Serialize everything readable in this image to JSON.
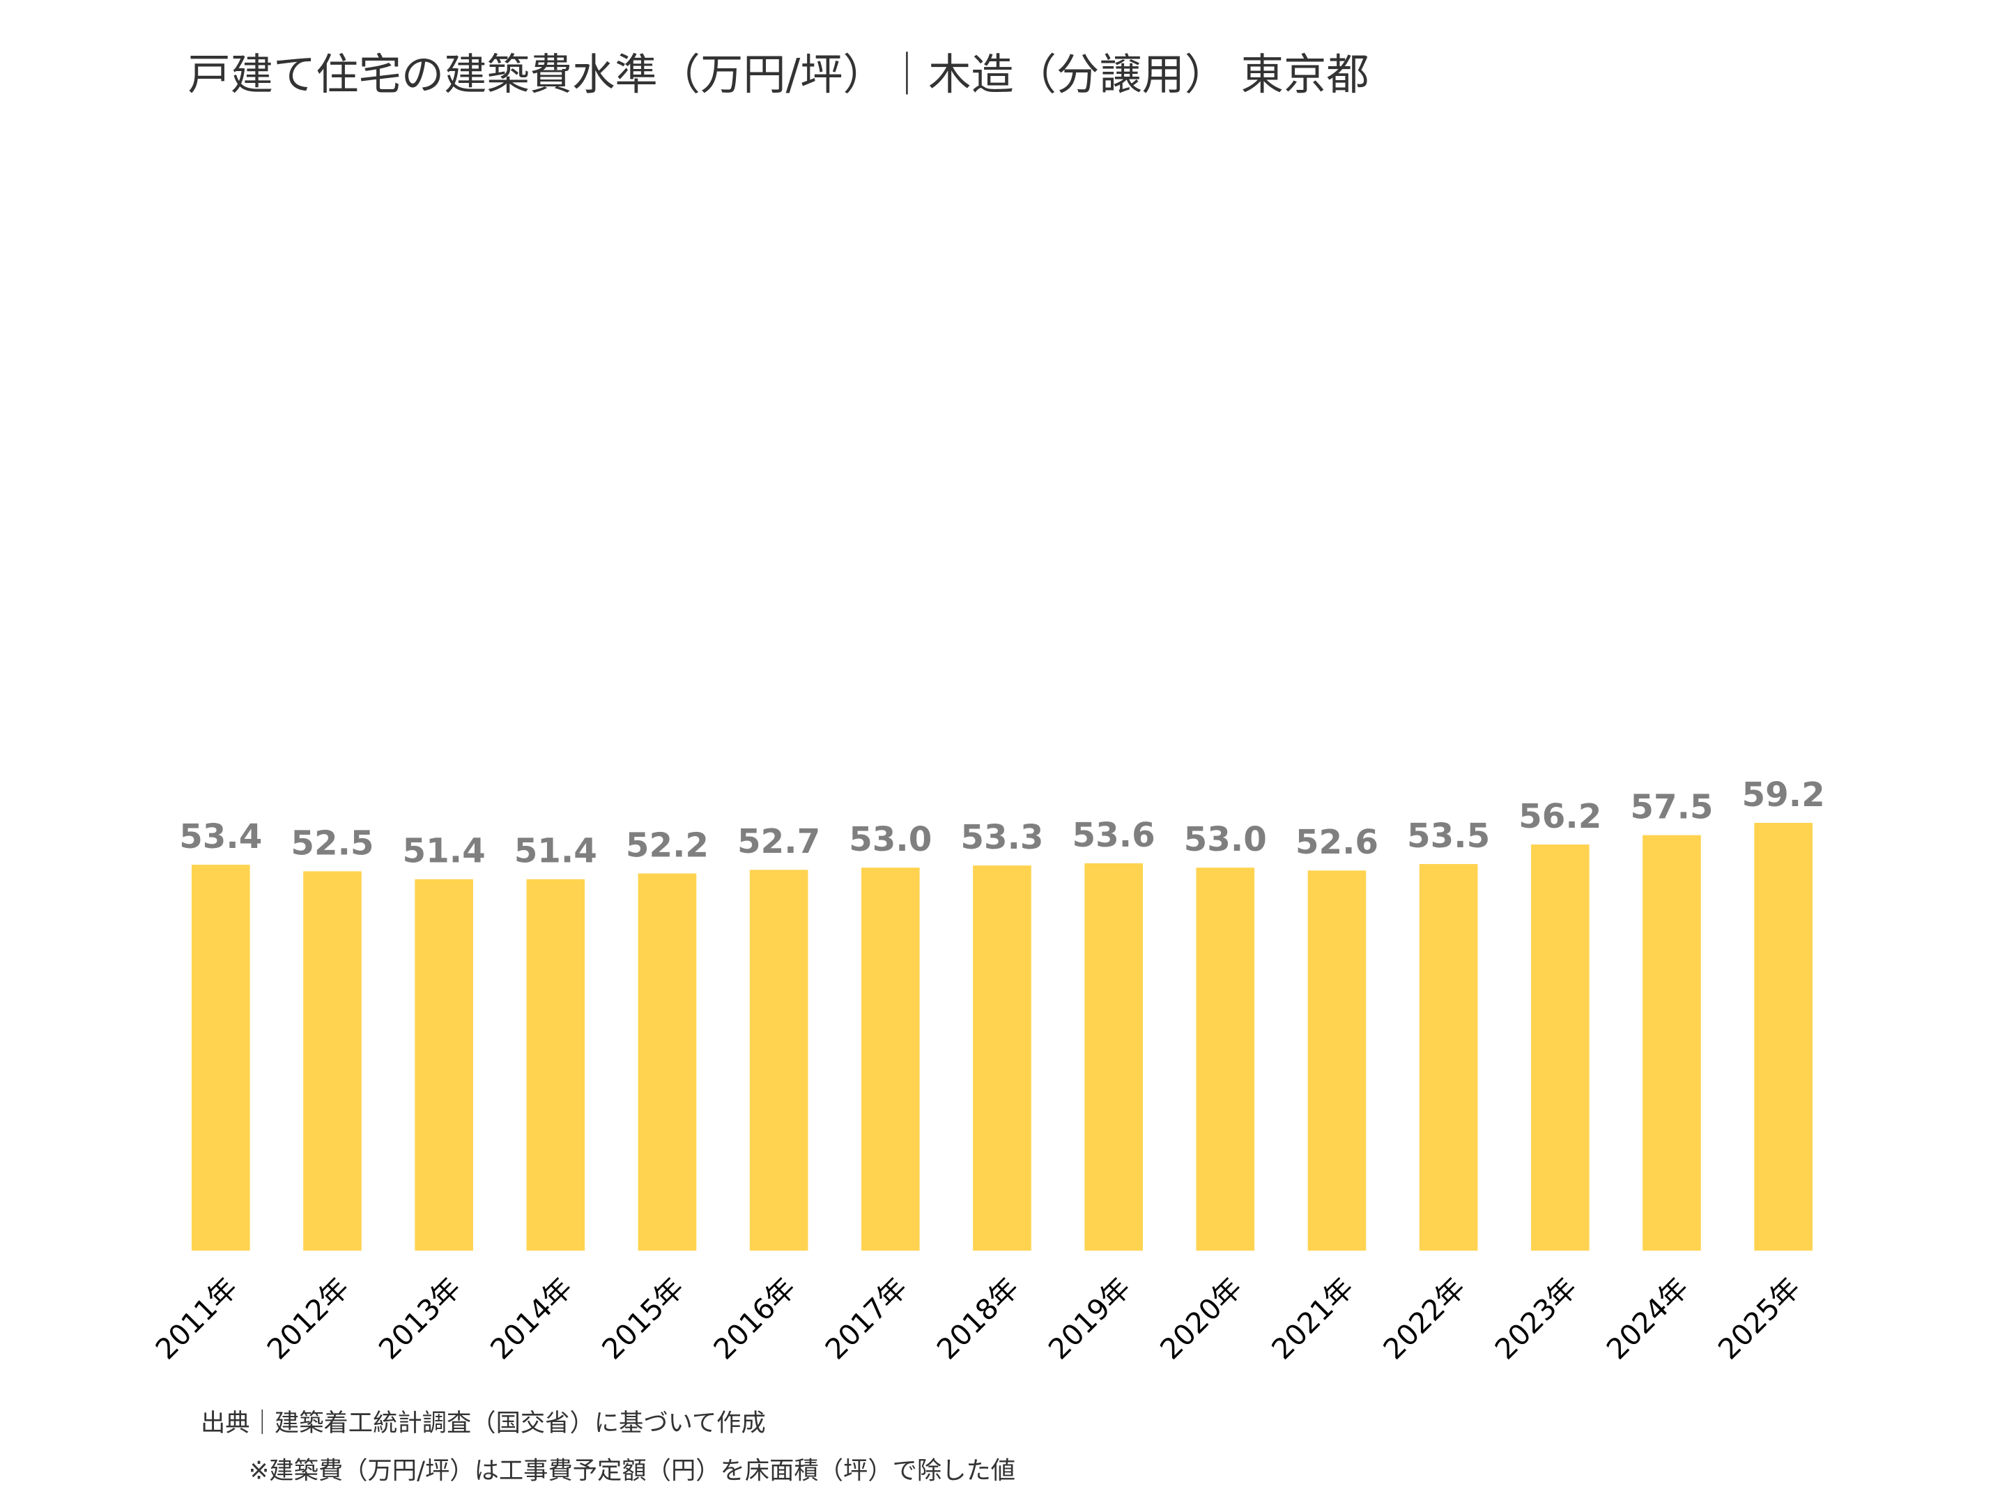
{
  "chart_data": {
    "type": "bar",
    "title": "戸建て住宅の建築費水準（万円/坪）｜木造（分譲用） 東京都",
    "categories": [
      "2011年",
      "2012年",
      "2013年",
      "2014年",
      "2015年",
      "2016年",
      "2017年",
      "2018年",
      "2019年",
      "2020年",
      "2021年",
      "2022年",
      "2023年",
      "2024年",
      "2025年"
    ],
    "values": [
      53.4,
      52.5,
      51.4,
      51.4,
      52.2,
      52.7,
      53.0,
      53.3,
      53.6,
      53.0,
      52.6,
      53.5,
      56.2,
      57.5,
      59.2
    ],
    "value_labels": [
      "53.4",
      "52.5",
      "51.4",
      "51.4",
      "52.2",
      "52.7",
      "53.0",
      "53.3",
      "53.6",
      "53.0",
      "52.6",
      "53.5",
      "56.2",
      "57.5",
      "59.2"
    ],
    "color": "#ffd34f",
    "ylim": [
      0,
      160
    ],
    "grid": false,
    "notes": [
      "出典｜建築着工統計調査（国交省）に基づいて作成",
      "※建築費（万円/坪）は工事費予定額（円）を床面積（坪）で除した値"
    ]
  }
}
